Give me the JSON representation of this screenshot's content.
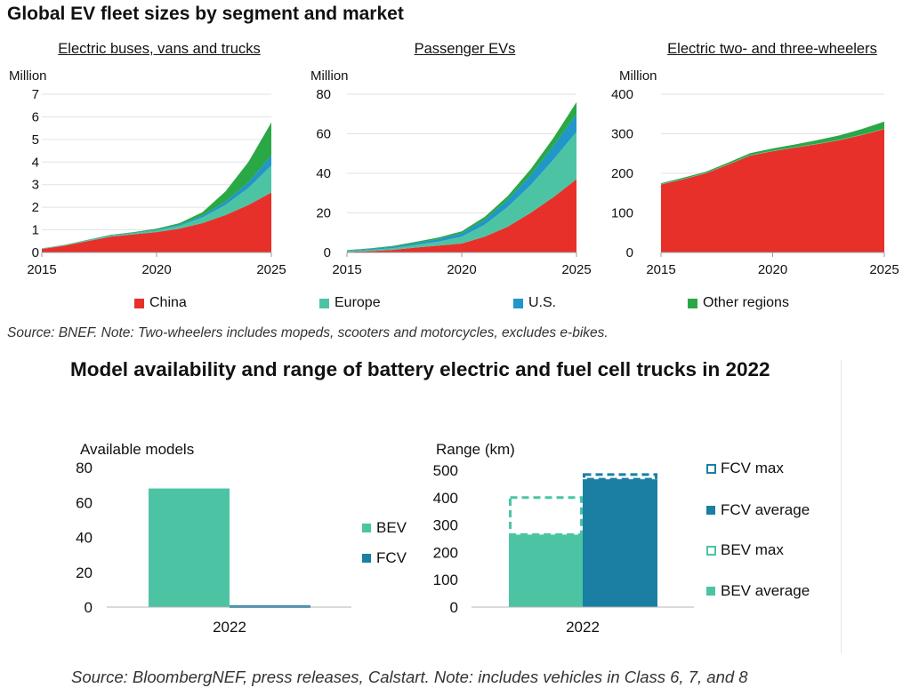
{
  "figure_title": "Global EV fleet sizes by segment and market",
  "top_source": "Source: BNEF. Note: Two-wheelers includes mopeds, scooters and motorcycles, excludes e-bikes.",
  "bottom_title": "Model availability and range of battery electric and fuel cell trucks in 2022",
  "bottom_source": "Source: BloombergNEF, press releases, Calstart. Note: includes vehicles in Class 6, 7, and 8",
  "colors": {
    "china": "#e8302a",
    "europe": "#4cc4a4",
    "us": "#2196c9",
    "other": "#2aa845",
    "bev": "#4cc4a4",
    "fcv": "#1a7fa3"
  },
  "top_legend": [
    "China",
    "Europe",
    "U.S.",
    "Other regions"
  ],
  "chart_data": [
    {
      "type": "area",
      "stacked": true,
      "title": "Electric buses, vans and trucks",
      "ylabel": "Million",
      "x": [
        2015,
        2016,
        2017,
        2018,
        2019,
        2020,
        2021,
        2022,
        2023,
        2024,
        2025
      ],
      "xticks": [
        2015,
        2020,
        2025
      ],
      "yticks": [
        0,
        1,
        2,
        3,
        4,
        5,
        6,
        7
      ],
      "ylim": [
        0,
        7
      ],
      "series": [
        {
          "name": "China",
          "values": [
            0.15,
            0.3,
            0.5,
            0.7,
            0.8,
            0.9,
            1.05,
            1.3,
            1.65,
            2.1,
            2.65
          ]
        },
        {
          "name": "Europe",
          "values": [
            0.01,
            0.02,
            0.03,
            0.04,
            0.05,
            0.08,
            0.13,
            0.25,
            0.45,
            0.75,
            1.2
          ]
        },
        {
          "name": "U.S.",
          "values": [
            0.01,
            0.01,
            0.01,
            0.02,
            0.02,
            0.03,
            0.05,
            0.08,
            0.15,
            0.25,
            0.45
          ]
        },
        {
          "name": "Other regions",
          "values": [
            0.01,
            0.01,
            0.02,
            0.02,
            0.03,
            0.04,
            0.07,
            0.15,
            0.45,
            0.9,
            1.45
          ]
        }
      ]
    },
    {
      "type": "area",
      "stacked": true,
      "title": "Passenger EVs",
      "ylabel": "Million",
      "x": [
        2015,
        2016,
        2017,
        2018,
        2019,
        2020,
        2021,
        2022,
        2023,
        2024,
        2025
      ],
      "xticks": [
        2015,
        2020,
        2025
      ],
      "yticks": [
        0,
        20,
        40,
        60,
        80
      ],
      "ylim": [
        0,
        80
      ],
      "series": [
        {
          "name": "China",
          "values": [
            0.3,
            0.7,
            1.3,
            2.5,
            3.5,
            4.5,
            8,
            13,
            20,
            28,
            37
          ]
        },
        {
          "name": "Europe",
          "values": [
            0.4,
            0.6,
            0.9,
            1.3,
            2,
            3.5,
            6,
            10,
            14,
            19,
            24
          ]
        },
        {
          "name": "U.S.",
          "values": [
            0.3,
            0.5,
            0.7,
            1,
            1.3,
            1.7,
            2.5,
            3.5,
            5,
            7,
            9
          ]
        },
        {
          "name": "Other regions",
          "values": [
            0.2,
            0.3,
            0.4,
            0.6,
            0.8,
            1,
            1.5,
            2,
            3,
            4,
            6
          ]
        }
      ]
    },
    {
      "type": "area",
      "stacked": true,
      "title": "Electric two- and three-wheelers",
      "ylabel": "Million",
      "x": [
        2015,
        2016,
        2017,
        2018,
        2019,
        2020,
        2021,
        2022,
        2023,
        2024,
        2025
      ],
      "xticks": [
        2015,
        2020,
        2025
      ],
      "yticks": [
        0,
        100,
        200,
        300,
        400
      ],
      "ylim": [
        0,
        400
      ],
      "series": [
        {
          "name": "China",
          "values": [
            172,
            185,
            200,
            222,
            245,
            256,
            265,
            274,
            284,
            297,
            312
          ]
        },
        {
          "name": "Europe",
          "values": [
            1,
            1,
            1,
            1,
            1,
            1,
            1,
            1,
            1,
            1,
            1
          ]
        },
        {
          "name": "U.S.",
          "values": [
            0,
            0,
            0,
            0,
            0,
            0,
            0,
            0,
            0,
            0,
            0
          ]
        },
        {
          "name": "Other regions",
          "values": [
            2,
            3,
            3,
            4,
            5,
            6,
            7,
            9,
            11,
            14,
            18
          ]
        }
      ]
    },
    {
      "type": "bar",
      "title": "Available models",
      "categories": [
        "2022"
      ],
      "yticks": [
        0,
        20,
        40,
        60,
        80
      ],
      "ylim": [
        0,
        80
      ],
      "series": [
        {
          "name": "BEV",
          "values": [
            68
          ]
        },
        {
          "name": "FCV",
          "values": [
            1
          ]
        }
      ]
    },
    {
      "type": "bar",
      "title": "Range (km)",
      "categories": [
        "2022"
      ],
      "yticks": [
        0,
        100,
        200,
        300,
        400,
        500
      ],
      "ylim": [
        0,
        500
      ],
      "series": [
        {
          "name": "BEV average",
          "values": [
            265
          ]
        },
        {
          "name": "BEV max",
          "values": [
            400
          ]
        },
        {
          "name": "FCV average",
          "values": [
            467
          ]
        },
        {
          "name": "FCV max",
          "values": [
            484
          ]
        }
      ],
      "legend": [
        "FCV max",
        "FCV average",
        "BEV max",
        "BEV average"
      ]
    }
  ]
}
